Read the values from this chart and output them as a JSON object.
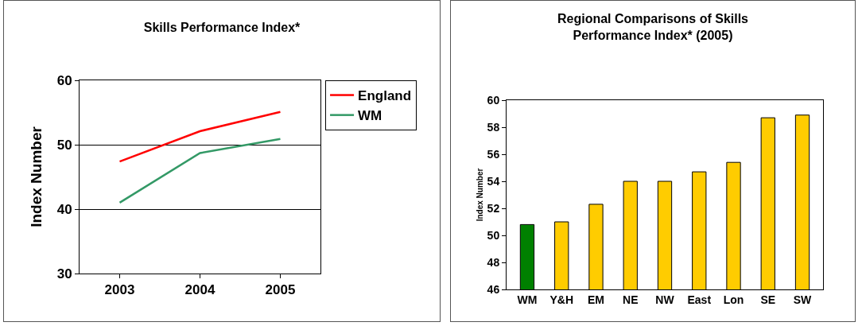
{
  "chart_data": [
    {
      "type": "line",
      "title": "Skills Performance Index*",
      "ylabel": "Index Number",
      "categories": [
        "2003",
        "2004",
        "2005"
      ],
      "series": [
        {
          "name": "England",
          "color": "#ff0000",
          "values": [
            47.4,
            52.1,
            55.1
          ]
        },
        {
          "name": "WM",
          "color": "#339966",
          "values": [
            41.0,
            48.7,
            50.9
          ]
        }
      ],
      "ylim": [
        30,
        60
      ],
      "yticks": [
        30,
        40,
        50,
        60
      ],
      "grid": "y",
      "legend": "top right",
      "marker": "none",
      "line_style": "solid"
    },
    {
      "type": "bar",
      "title": "Regional Comparisons of Skills Performance Index* (2005)",
      "ylabel": "Index Number",
      "categories": [
        "WM",
        "Y&H",
        "EM",
        "NE",
        "NW",
        "East",
        "Lon",
        "SE",
        "SW"
      ],
      "values": [
        50.8,
        51.0,
        52.3,
        54.0,
        54.0,
        54.7,
        55.4,
        58.7,
        58.9
      ],
      "colors": [
        "#008000",
        "#ffcc00",
        "#ffcc00",
        "#ffcc00",
        "#ffcc00",
        "#ffcc00",
        "#ffcc00",
        "#ffcc00",
        "#ffcc00"
      ],
      "ylim": [
        46,
        60
      ],
      "yticks": [
        46,
        48,
        50,
        52,
        54,
        56,
        58,
        60
      ],
      "grid": false,
      "legend": false
    }
  ]
}
